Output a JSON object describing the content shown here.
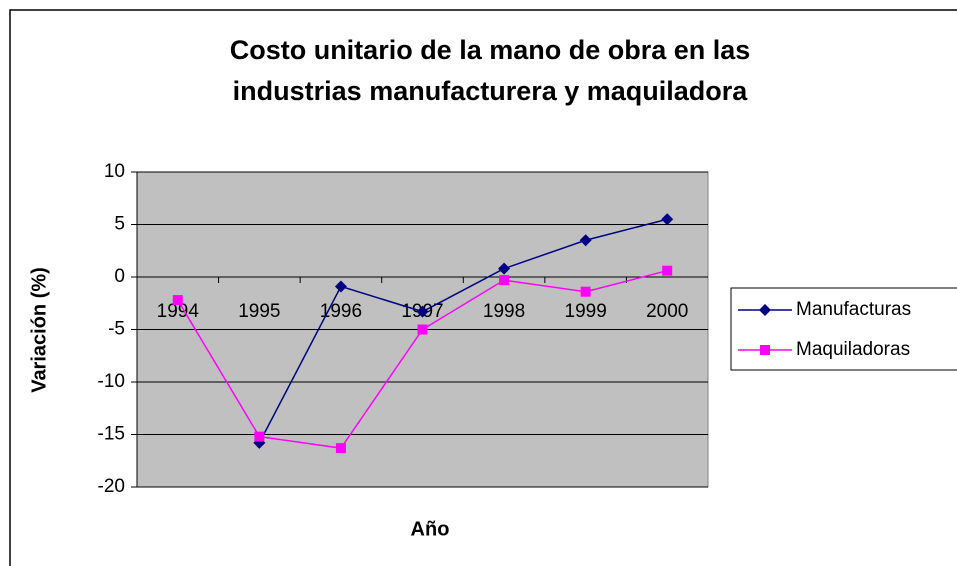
{
  "chart_data": {
    "type": "line",
    "title": [
      "Costo unitario de la mano de obra en las",
      "industrias manufacturera y maquiladora"
    ],
    "x_label": "Año",
    "y_label": "Variación (%)",
    "categories": [
      "1994",
      "1995",
      "1996",
      "1997",
      "1998",
      "1999",
      "2000"
    ],
    "series": [
      {
        "name": "Manufacturas",
        "color": "#000080",
        "marker": "diamond",
        "values": [
          null,
          -15.8,
          -0.9,
          -3.3,
          0.8,
          3.5,
          5.5
        ]
      },
      {
        "name": "Maquiladoras",
        "color": "#ff00ff",
        "marker": "square",
        "values": [
          -2.2,
          -15.2,
          -16.3,
          -5.0,
          -0.3,
          -1.4,
          0.6
        ]
      }
    ],
    "ylim": [
      -20,
      10
    ],
    "yticks": [
      -20,
      -15,
      -10,
      -5,
      0,
      5,
      10
    ],
    "grid": true,
    "legend": "right"
  }
}
